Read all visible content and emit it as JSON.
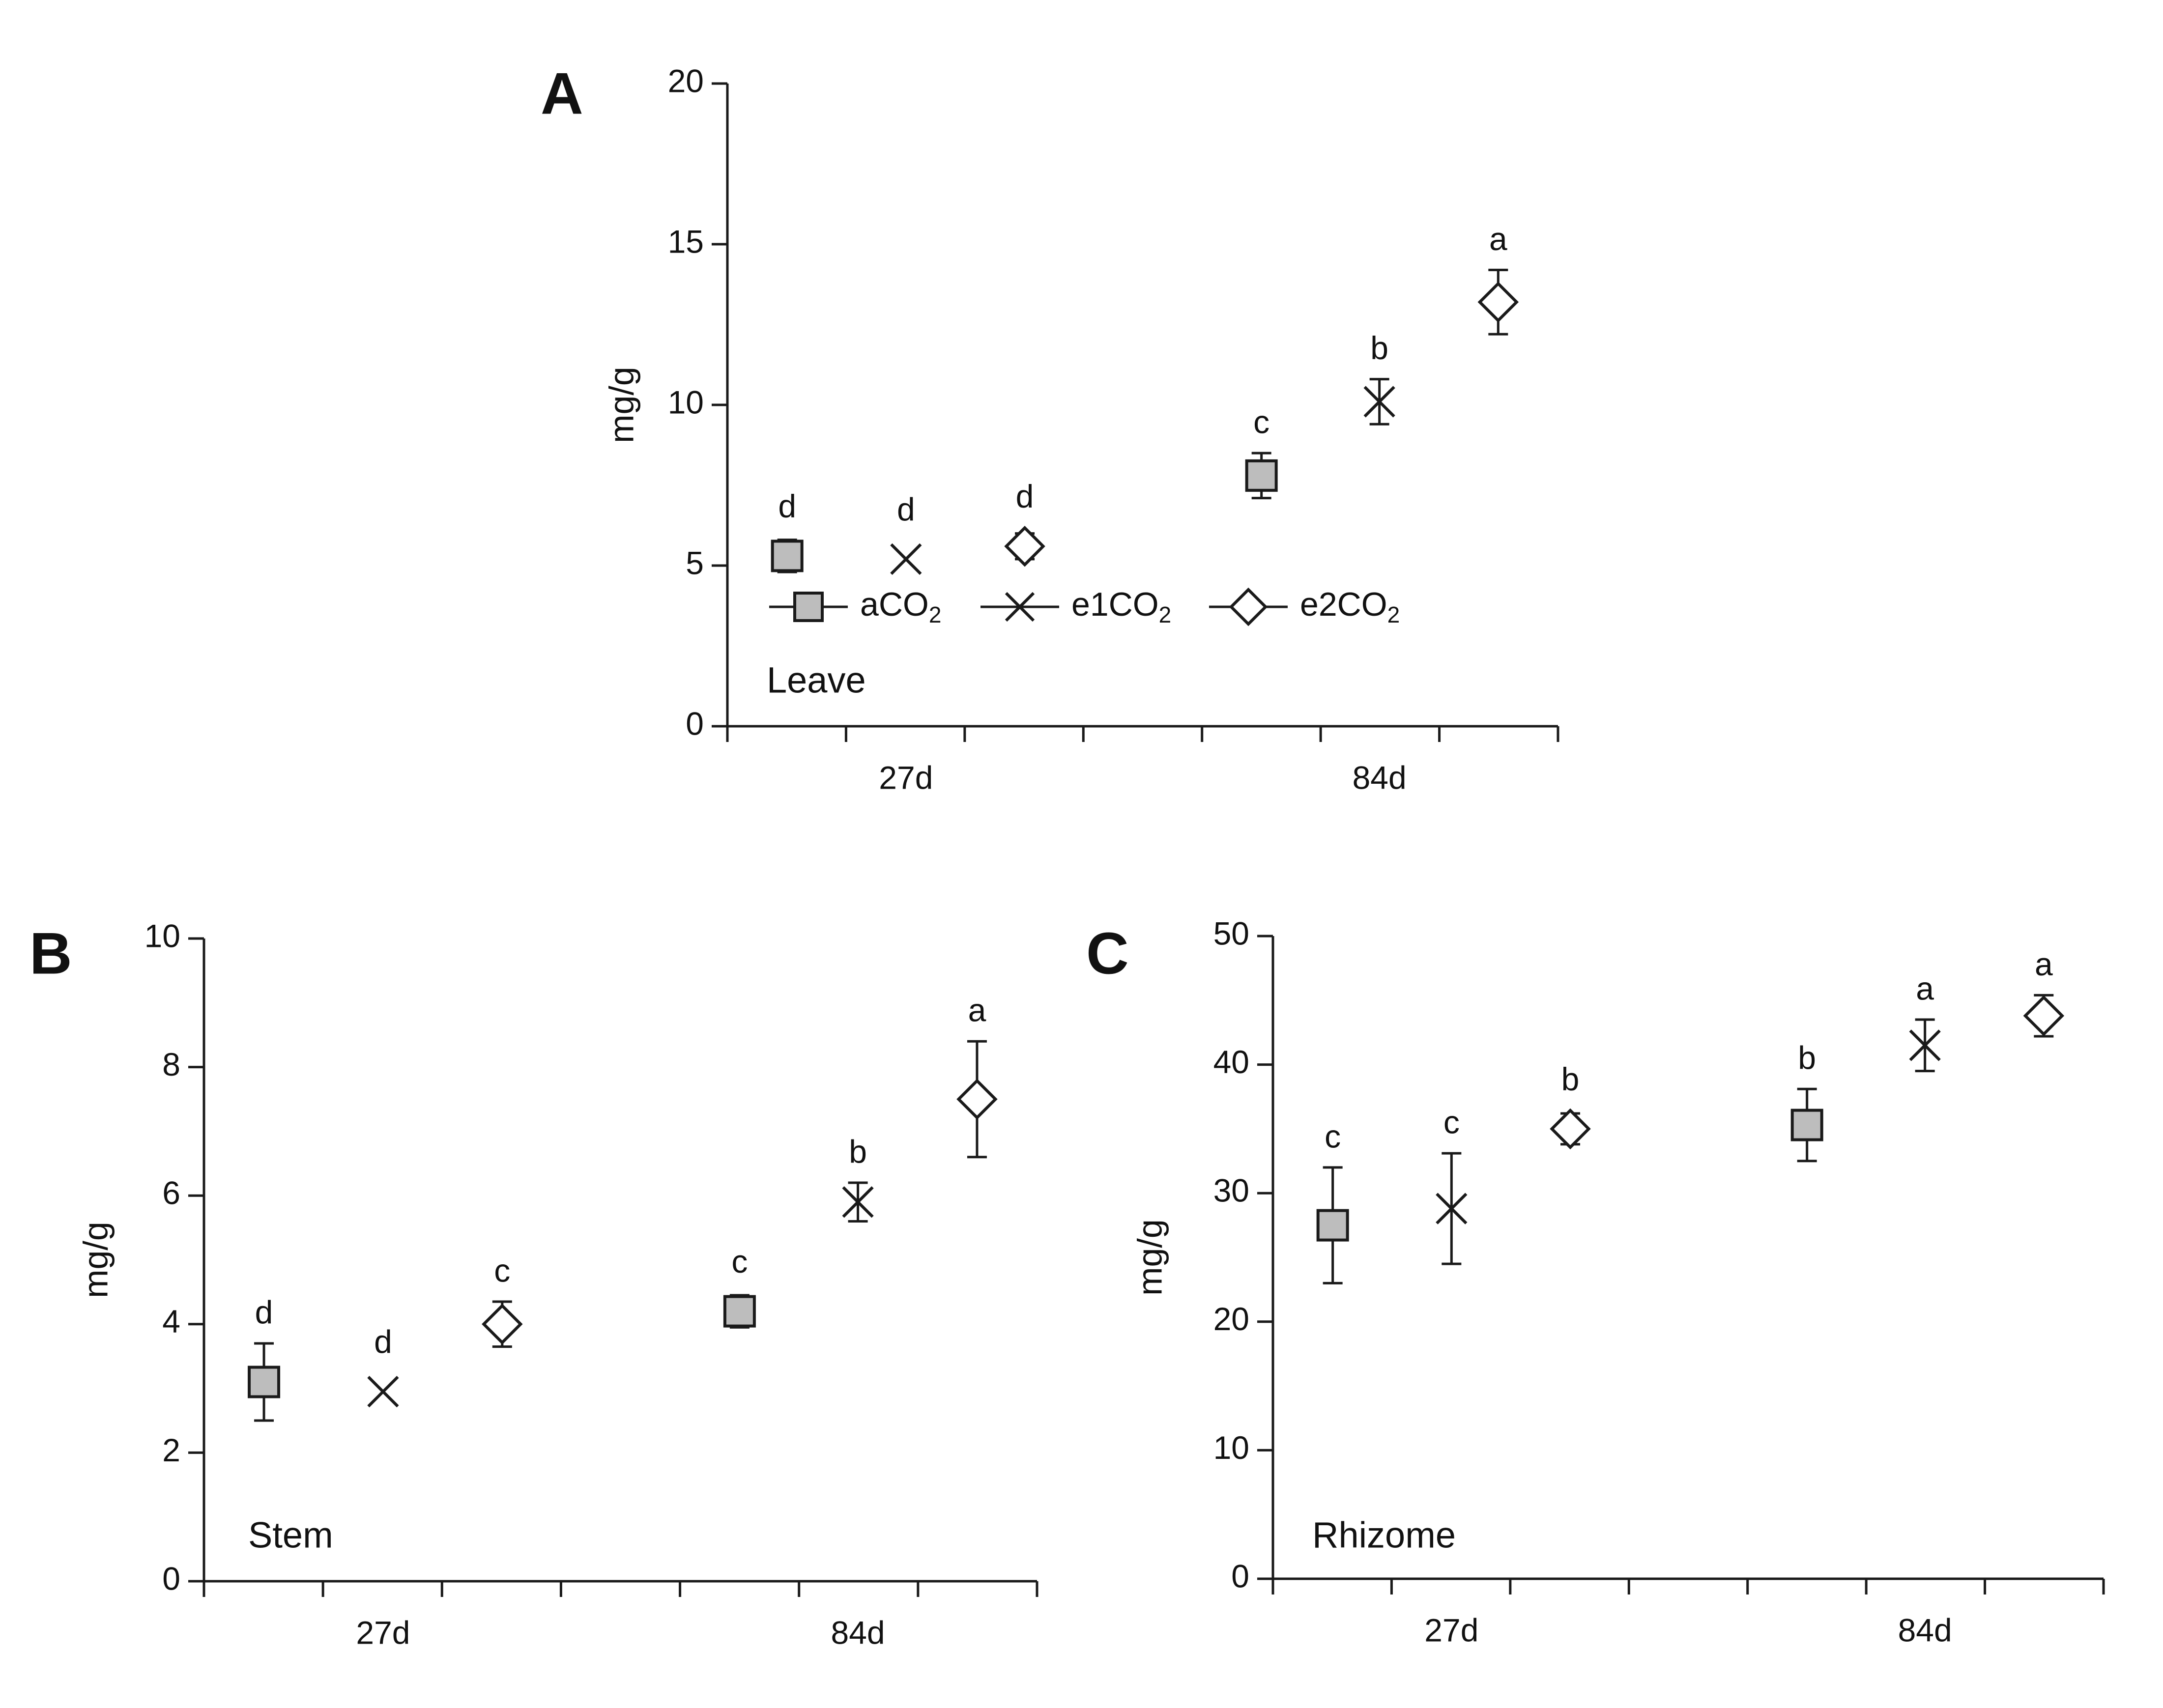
{
  "chart_data": [
    {
      "type": "scatter",
      "panel_letter": "A",
      "panel_name": "Leave",
      "ylabel": "mg/g",
      "ylim": [
        0,
        20
      ],
      "yticks": [
        0,
        5,
        10,
        15,
        20
      ],
      "categories": [
        "27d",
        "84d"
      ],
      "legend": {
        "placement": "lower-left",
        "entries": [
          {
            "base": "aCO",
            "sub": "2",
            "marker": "square"
          },
          {
            "base": "e1CO",
            "sub": "2",
            "marker": "x"
          },
          {
            "base": "e2CO",
            "sub": "2",
            "marker": "diamond"
          }
        ]
      },
      "series": [
        {
          "marker": "square",
          "points": [
            {
              "category": "27d",
              "value": 5.3,
              "err": 0.5,
              "letter": "d"
            },
            {
              "category": "84d",
              "value": 7.8,
              "err": 0.7,
              "letter": "c"
            }
          ]
        },
        {
          "marker": "x",
          "points": [
            {
              "category": "27d",
              "value": 5.2,
              "err": 0.0,
              "letter": "d"
            },
            {
              "category": "84d",
              "value": 10.1,
              "err": 0.7,
              "letter": "b"
            }
          ]
        },
        {
          "marker": "diamond",
          "points": [
            {
              "category": "27d",
              "value": 5.6,
              "err": 0.4,
              "letter": "d"
            },
            {
              "category": "84d",
              "value": 13.2,
              "err": 1.0,
              "letter": "a"
            }
          ]
        }
      ]
    },
    {
      "type": "scatter",
      "panel_letter": "B",
      "panel_name": "Stem",
      "ylabel": "mg/g",
      "ylim": [
        0,
        10
      ],
      "yticks": [
        0,
        2,
        4,
        6,
        8,
        10
      ],
      "categories": [
        "27d",
        "84d"
      ],
      "series": [
        {
          "marker": "square",
          "points": [
            {
              "category": "27d",
              "value": 3.1,
              "err": 0.6,
              "letter": "d"
            },
            {
              "category": "84d",
              "value": 4.2,
              "err": 0.25,
              "letter": "c"
            }
          ]
        },
        {
          "marker": "x",
          "points": [
            {
              "category": "27d",
              "value": 2.95,
              "err": 0.0,
              "letter": "d"
            },
            {
              "category": "84d",
              "value": 5.9,
              "err": 0.3,
              "letter": "b"
            }
          ]
        },
        {
          "marker": "diamond",
          "points": [
            {
              "category": "27d",
              "value": 4.0,
              "err": 0.35,
              "letter": "c"
            },
            {
              "category": "84d",
              "value": 7.5,
              "err": 0.9,
              "letter": "a"
            }
          ]
        }
      ]
    },
    {
      "type": "scatter",
      "panel_letter": "C",
      "panel_name": "Rhizome",
      "ylabel": "mg/g",
      "ylim": [
        0,
        50
      ],
      "yticks": [
        0,
        10,
        20,
        30,
        40,
        50
      ],
      "categories": [
        "27d",
        "84d"
      ],
      "series": [
        {
          "marker": "square",
          "points": [
            {
              "category": "27d",
              "value": 27.5,
              "err": 4.5,
              "letter": "c"
            },
            {
              "category": "84d",
              "value": 35.3,
              "err": 2.8,
              "letter": "b"
            }
          ]
        },
        {
          "marker": "x",
          "points": [
            {
              "category": "27d",
              "value": 28.8,
              "err": 4.3,
              "letter": "c"
            },
            {
              "category": "84d",
              "value": 41.5,
              "err": 2.0,
              "letter": "a"
            }
          ]
        },
        {
          "marker": "diamond",
          "points": [
            {
              "category": "27d",
              "value": 35.0,
              "err": 1.2,
              "letter": "b"
            },
            {
              "category": "84d",
              "value": 43.8,
              "err": 1.6,
              "letter": "a"
            }
          ]
        }
      ]
    }
  ]
}
